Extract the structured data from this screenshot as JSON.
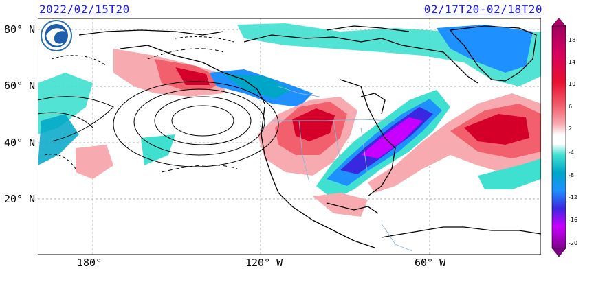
{
  "header": {
    "init_time": "2022/02/15T20",
    "valid_range": "02/17T20-02/18T20"
  },
  "axes": {
    "lat_labels": [
      "80° N",
      "60° N",
      "40° N",
      "20° N"
    ],
    "lon_labels": [
      "180°",
      "120° W",
      "60° W"
    ]
  },
  "logo": "agency-logo",
  "colorbar": {
    "ticks": [
      "18",
      "14",
      "10",
      "6",
      "2",
      "-4",
      "-8",
      "-12",
      "-16",
      "-20"
    ],
    "colors": {
      "warm_strong": "#d4002a",
      "warm_mid": "#f2606e",
      "warm_light": "#f7aab0",
      "cool_light": "#40e0d0",
      "cool_mid": "#1e90ff",
      "cool_strong": "#3a28e0",
      "cold_extreme": "#c800ff"
    }
  }
}
